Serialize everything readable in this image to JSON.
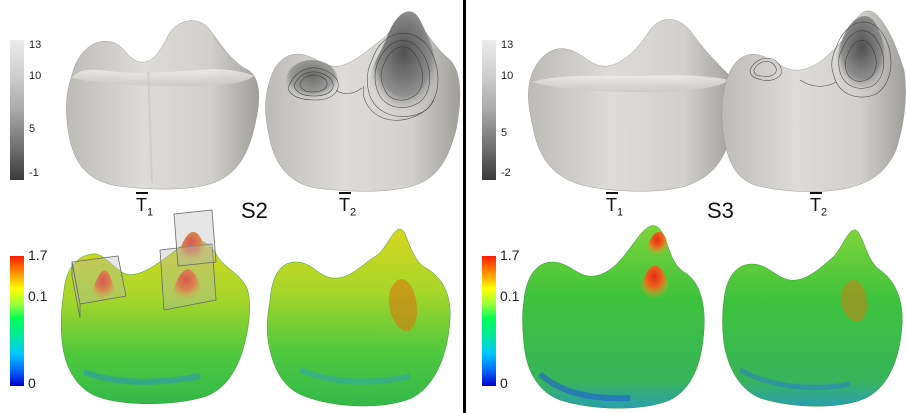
{
  "panels": {
    "left": {
      "title": "S2",
      "gray_scale": {
        "ticks": [
          "13",
          "10",
          "5",
          "-1"
        ]
      },
      "color_scale": {
        "ticks": [
          "1.7",
          "0.1",
          "0"
        ]
      },
      "teeth_labels": [
        {
          "base": "T",
          "sub": "1"
        },
        {
          "base": "T",
          "sub": "2"
        }
      ]
    },
    "right": {
      "title": "S3",
      "gray_scale": {
        "ticks": [
          "13",
          "10",
          "5",
          "-2"
        ]
      },
      "color_scale": {
        "ticks": [
          "1.7",
          "0.1",
          "0"
        ]
      },
      "teeth_labels": [
        {
          "base": "T",
          "sub": "1"
        },
        {
          "base": "T",
          "sub": "2"
        }
      ]
    }
  },
  "colors": {
    "tooth_gray": "#d9d8d4",
    "contour_dark": "#505050",
    "heat_red": "#e0301e",
    "heat_green": "#3cc23c",
    "divider": "#000000"
  }
}
